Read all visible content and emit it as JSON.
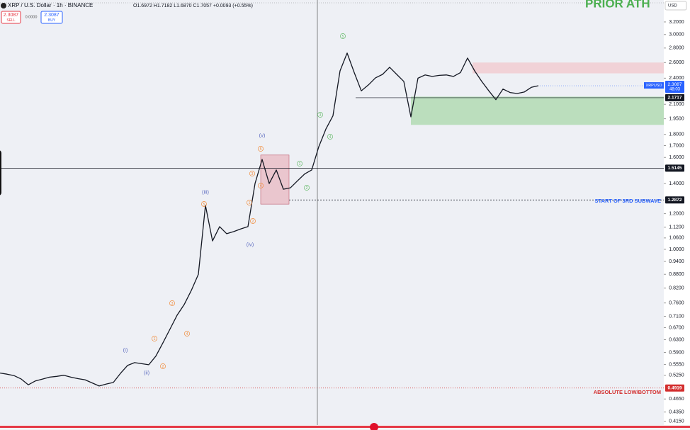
{
  "header": {
    "symbol": "XRP / U.S. Dollar · 1h · BINANCE",
    "ohlc": "O1.6972 H1.7182 L1.6870 C1.7057 +0.0093 (+0.55%)",
    "sell_price": "2.3087",
    "sell": "SELL",
    "spread": "0.0000",
    "buy_price": "2.3087",
    "buy": "BUY",
    "currency": "USD"
  },
  "chart_data": {
    "type": "line",
    "log_scale": true,
    "grid": false,
    "series": [
      {
        "name": "XRPUSD",
        "color": "#131722",
        "values": [
          0.531,
          0.528,
          0.524,
          0.515,
          0.5,
          0.51,
          0.515,
          0.52,
          0.522,
          0.525,
          0.52,
          0.516,
          0.513,
          0.505,
          0.497,
          0.502,
          0.506,
          0.53,
          0.552,
          0.56,
          0.557,
          0.554,
          0.579,
          0.62,
          0.665,
          0.714,
          0.754,
          0.81,
          0.88,
          1.252,
          1.044,
          1.123,
          1.083,
          1.095,
          1.11,
          1.123,
          1.4,
          1.584,
          1.4,
          1.501,
          1.36,
          1.37,
          1.42,
          1.47,
          1.501,
          1.69,
          1.85,
          1.98,
          2.492,
          2.729,
          2.47,
          2.25,
          2.318,
          2.404,
          2.447,
          2.538,
          2.447,
          2.361,
          1.969,
          2.4,
          2.44,
          2.421,
          2.435,
          2.44,
          2.421,
          2.47,
          2.661,
          2.492,
          2.361,
          2.25,
          2.15,
          2.27,
          2.23,
          2.219,
          2.236,
          2.29,
          2.309
        ]
      }
    ],
    "ylim": [
      0.407,
      3.58
    ],
    "yticks": [
      {
        "value": 3.2,
        "label": "3.2000"
      },
      {
        "value": 3.0,
        "label": "3.0000"
      },
      {
        "value": 2.8,
        "label": "2.8000"
      },
      {
        "value": 2.6,
        "label": "2.6000"
      },
      {
        "value": 2.4,
        "label": "2.4000"
      },
      {
        "value": 2.1,
        "label": "2.1000"
      },
      {
        "value": 1.95,
        "label": "1.9500"
      },
      {
        "value": 1.8,
        "label": "1.8000"
      },
      {
        "value": 1.7,
        "label": "1.7000"
      },
      {
        "value": 1.6,
        "label": "1.6000"
      },
      {
        "value": 1.4,
        "label": "1.4000"
      },
      {
        "value": 1.2,
        "label": "1.2000"
      },
      {
        "value": 1.12,
        "label": "1.1200"
      },
      {
        "value": 1.06,
        "label": "1.0600"
      },
      {
        "value": 1.0,
        "label": "1.0000"
      },
      {
        "value": 0.94,
        "label": "0.9400"
      },
      {
        "value": 0.88,
        "label": "0.8800"
      },
      {
        "value": 0.82,
        "label": "0.8200"
      },
      {
        "value": 0.76,
        "label": "0.7600"
      },
      {
        "value": 0.71,
        "label": "0.7100"
      },
      {
        "value": 0.67,
        "label": "0.6700"
      },
      {
        "value": 0.63,
        "label": "0.6300"
      },
      {
        "value": 0.59,
        "label": "0.5900"
      },
      {
        "value": 0.555,
        "label": "0.5550"
      },
      {
        "value": 0.525,
        "label": "0.5250"
      },
      {
        "value": 0.465,
        "label": "0.4650"
      },
      {
        "value": 0.435,
        "label": "0.4350"
      },
      {
        "value": 0.415,
        "label": "0.4150"
      }
    ],
    "zones": [
      {
        "from": 2.46,
        "to": 2.6,
        "color": "#f2c4cb"
      },
      {
        "from": 1.89,
        "to": 2.184,
        "color": "#a9d8a9"
      },
      {
        "from": 1.26,
        "to": 1.62,
        "color": "#e8b4be"
      }
    ],
    "levels": [
      {
        "value": 2.1717,
        "label": "2.1717",
        "color": "#131722"
      },
      {
        "value": 1.5145,
        "label": "1.5145",
        "color": "#131722"
      },
      {
        "value": 1.2872,
        "label": "1.2872",
        "color": "#131722"
      },
      {
        "value": 0.4919,
        "label": "0.4919",
        "color": "#d32f2f"
      }
    ],
    "last_price": {
      "value": 2.3087,
      "label": "2.3087",
      "name": "XRPUSD",
      "countdown": "48:03",
      "color": "#2962ff"
    },
    "annotations": [
      {
        "text": "PRIOR ATH",
        "color": "#4caf50"
      },
      {
        "text": "START OF 3RD SUBWAVE",
        "color": "#2962ff"
      },
      {
        "text": "ABSOLUTE LOW/BOTTOM",
        "color": "#d32f2f"
      }
    ],
    "wave_labels": [
      {
        "text": "(i)",
        "color": "#5c6bc0"
      },
      {
        "text": "(ii)",
        "color": "#5c6bc0"
      },
      {
        "text": "(iii)",
        "color": "#5c6bc0"
      },
      {
        "text": "(iv)",
        "color": "#5c6bc0"
      },
      {
        "text": "(v)",
        "color": "#5c6bc0"
      },
      {
        "text": "1",
        "color": "#f08c3c"
      },
      {
        "text": "2",
        "color": "#f08c3c"
      },
      {
        "text": "3",
        "color": "#f08c3c"
      },
      {
        "text": "4",
        "color": "#f08c3c"
      },
      {
        "text": "5",
        "color": "#f08c3c"
      },
      {
        "text": "1",
        "color": "#f08c3c"
      },
      {
        "text": "2",
        "color": "#f08c3c"
      },
      {
        "text": "3",
        "color": "#f08c3c"
      },
      {
        "text": "4",
        "color": "#f08c3c"
      },
      {
        "text": "5",
        "color": "#f08c3c"
      },
      {
        "text": "1",
        "color": "#66bb6a"
      },
      {
        "text": "2",
        "color": "#66bb6a"
      },
      {
        "text": "3",
        "color": "#66bb6a"
      },
      {
        "text": "4",
        "color": "#66bb6a"
      },
      {
        "text": "5",
        "color": "#66bb6a"
      }
    ]
  }
}
